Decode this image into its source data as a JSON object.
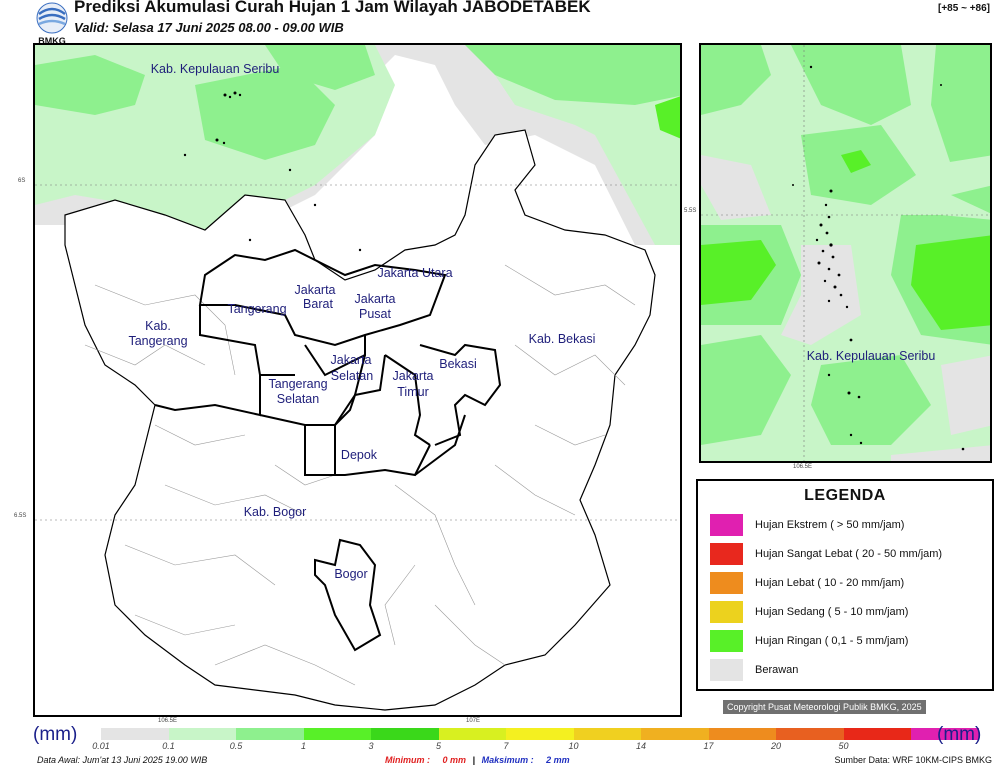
{
  "header": {
    "logo_text": "BMKG",
    "title": "Prediksi Akumulasi Curah Hujan 1 Jam Wilayah JABODETABEK",
    "valid": "Valid: Selasa 17 Juni 2025 08.00 - 09.00 WIB",
    "range_code": "[+85 ~ +86]"
  },
  "main_map": {
    "lat_labels": [
      "6S",
      "6.5S"
    ],
    "lon_labels": [
      "106.5E",
      "107E"
    ],
    "regions": [
      "Kab. Kepulauan Seribu",
      "Jakarta Utara",
      "Jakarta",
      "Barat",
      "Jakarta",
      "Pusat",
      "Tangerang",
      "Kab.",
      "Tangerang",
      "Jakarta",
      "Selatan",
      "Jakarta",
      "Timur",
      "Bekasi",
      "Kab. Bekasi",
      "Tangerang",
      "Selatan",
      "Depok",
      "Kab. Bogor",
      "Bogor"
    ]
  },
  "inset_map": {
    "lat_label": "5.5S",
    "lon_label": "106.5E",
    "region": "Kab. Kepulauan Seribu"
  },
  "legend": {
    "title": "LEGENDA",
    "items": [
      {
        "label": "Hujan Ekstrem ( > 50 mm/jam)",
        "color": "#e020b0"
      },
      {
        "label": "Hujan Sangat Lebat ( 20 - 50 mm/jam)",
        "color": "#e8281e"
      },
      {
        "label": "Hujan Lebat ( 10 - 20 mm/jam)",
        "color": "#ee8c1e"
      },
      {
        "label": "Hujan Sedang ( 5 - 10 mm/jam)",
        "color": "#ecd21e"
      },
      {
        "label": "Hujan Ringan ( 0,1 - 5 mm/jam)",
        "color": "#58f028"
      },
      {
        "label": "Berawan",
        "color": "#e4e4e4"
      }
    ]
  },
  "copyright": "Copyright Pusat Meteorologi Publik BMKG, 2025",
  "colorbar": {
    "unit_left": "(mm)",
    "unit_right": "(mm)",
    "colors": [
      "#e4e4e4",
      "#c8f5c8",
      "#8ef08e",
      "#58f028",
      "#3ad81a",
      "#d8f020",
      "#f4f020",
      "#f0d020",
      "#f0b020",
      "#ee8c1e",
      "#e86020",
      "#e82818",
      "#e020b0"
    ],
    "ticks": [
      "0.01",
      "0.1",
      "0.5",
      "1",
      "3",
      "5",
      "7",
      "10",
      "14",
      "17",
      "20",
      "50"
    ]
  },
  "footer": {
    "data_awal": "Data Awal: Jum'at 13 Juni 2025 19.00 WIB",
    "min_label": "Minimum :",
    "min_value": "0 mm",
    "separator": "|",
    "max_label": "Maksimum :",
    "max_value": "2 mm",
    "source": "Sumber Data: WRF 10KM-CIPS BMKG"
  }
}
